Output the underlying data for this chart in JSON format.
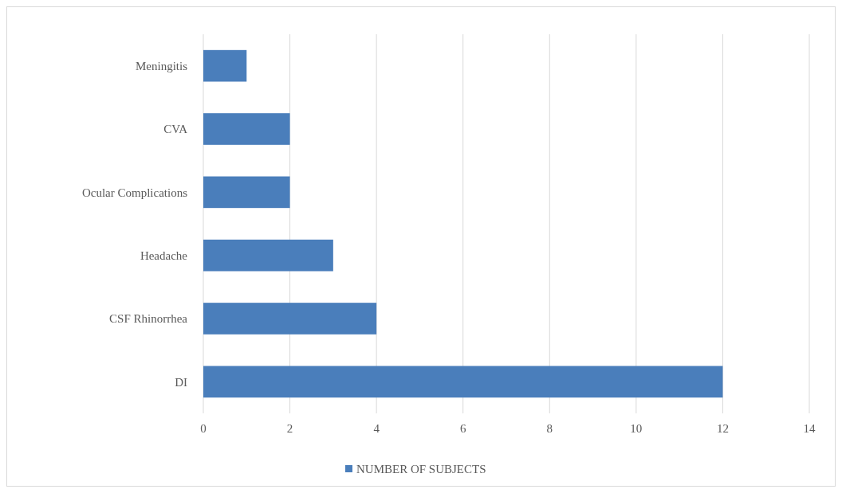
{
  "chart_data": {
    "type": "bar",
    "orientation": "horizontal",
    "categories": [
      "Meningitis",
      "CVA",
      "Ocular Complications",
      "Headache",
      "CSF Rhinorrhea",
      "DI"
    ],
    "series": [
      {
        "name": "NUMBER OF SUBJECTS",
        "color": "#4a7ebb",
        "values": [
          1,
          2,
          2,
          3,
          4,
          12
        ]
      }
    ],
    "xlim": [
      0,
      14
    ],
    "xticks": [
      0,
      2,
      4,
      6,
      8,
      10,
      12,
      14
    ],
    "grid": "x",
    "legend": "bottom"
  }
}
